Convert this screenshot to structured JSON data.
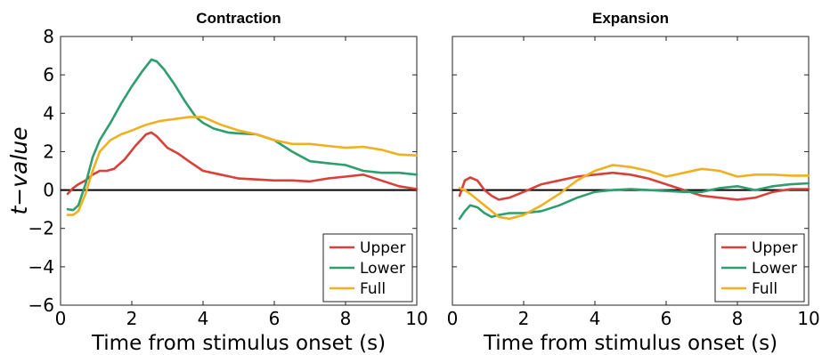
{
  "chart_data": [
    {
      "type": "line",
      "title": "Contraction",
      "xlabel": "Time from stimulus onset (s)",
      "ylabel": "t−value",
      "xlim": [
        0,
        10
      ],
      "ylim": [
        -6,
        8
      ],
      "xticks": [
        "0",
        "2",
        "4",
        "6",
        "8",
        "10"
      ],
      "yticks": [
        "−6",
        "−4",
        "−2",
        "0",
        "2",
        "4",
        "6",
        "8"
      ],
      "legend_position": "bottom-right",
      "series": [
        {
          "name": "Upper",
          "color": "#d9403a",
          "x": [
            0.2,
            0.35,
            0.5,
            0.7,
            0.9,
            1.1,
            1.3,
            1.5,
            1.8,
            2.1,
            2.4,
            2.55,
            2.7,
            3.0,
            3.3,
            3.6,
            4.0,
            4.5,
            5.0,
            5.5,
            6.0,
            6.5,
            7.0,
            7.5,
            8.0,
            8.5,
            9.0,
            9.5,
            10.0
          ],
          "values": [
            -0.2,
            0.1,
            0.3,
            0.5,
            0.8,
            1.0,
            1.0,
            1.1,
            1.6,
            2.3,
            2.9,
            3.0,
            2.8,
            2.2,
            1.9,
            1.5,
            1.0,
            0.8,
            0.6,
            0.55,
            0.5,
            0.5,
            0.45,
            0.6,
            0.7,
            0.8,
            0.5,
            0.2,
            0.05
          ]
        },
        {
          "name": "Lower",
          "color": "#2e9e6e",
          "x": [
            0.2,
            0.35,
            0.5,
            0.7,
            0.9,
            1.1,
            1.4,
            1.7,
            2.0,
            2.3,
            2.55,
            2.7,
            2.9,
            3.2,
            3.5,
            3.8,
            4.0,
            4.3,
            4.7,
            5.0,
            5.5,
            6.0,
            6.5,
            7.0,
            7.5,
            8.0,
            8.5,
            9.0,
            9.5,
            10.0
          ],
          "values": [
            -1.0,
            -1.05,
            -0.8,
            0.3,
            1.7,
            2.6,
            3.5,
            4.5,
            5.4,
            6.2,
            6.8,
            6.7,
            6.3,
            5.5,
            4.6,
            3.8,
            3.5,
            3.2,
            3.0,
            2.95,
            2.9,
            2.6,
            2.0,
            1.5,
            1.4,
            1.3,
            1.0,
            0.9,
            0.9,
            0.8
          ]
        },
        {
          "name": "Full",
          "color": "#f0b020",
          "x": [
            0.2,
            0.35,
            0.5,
            0.7,
            0.9,
            1.1,
            1.4,
            1.7,
            2.0,
            2.4,
            2.8,
            3.2,
            3.6,
            4.0,
            4.5,
            5.0,
            5.5,
            6.0,
            6.5,
            7.0,
            7.5,
            8.0,
            8.5,
            9.0,
            9.5,
            10.0
          ],
          "values": [
            -1.3,
            -1.3,
            -1.1,
            -0.2,
            1.0,
            2.0,
            2.6,
            2.9,
            3.1,
            3.4,
            3.6,
            3.7,
            3.8,
            3.8,
            3.4,
            3.1,
            2.9,
            2.6,
            2.4,
            2.4,
            2.3,
            2.2,
            2.25,
            2.1,
            1.85,
            1.8
          ]
        }
      ]
    },
    {
      "type": "line",
      "title": "Expansion",
      "xlabel": "Time from stimulus onset (s)",
      "xlim": [
        0,
        10
      ],
      "ylim": [
        -6,
        8
      ],
      "xticks": [
        "0",
        "2",
        "4",
        "6",
        "8",
        "10"
      ],
      "legend_position": "bottom-right",
      "series": [
        {
          "name": "Upper",
          "color": "#d9403a",
          "x": [
            0.2,
            0.35,
            0.5,
            0.7,
            0.9,
            1.1,
            1.3,
            1.6,
            2.0,
            2.5,
            3.0,
            3.5,
            4.0,
            4.5,
            5.0,
            5.5,
            6.0,
            6.5,
            7.0,
            7.5,
            8.0,
            8.5,
            9.0,
            9.5,
            10.0
          ],
          "values": [
            -0.3,
            0.5,
            0.65,
            0.5,
            0.0,
            -0.3,
            -0.5,
            -0.4,
            -0.1,
            0.3,
            0.5,
            0.7,
            0.8,
            0.9,
            0.8,
            0.6,
            0.3,
            0.0,
            -0.3,
            -0.4,
            -0.5,
            -0.4,
            -0.1,
            0.05,
            0.05
          ]
        },
        {
          "name": "Lower",
          "color": "#2e9e6e",
          "x": [
            0.2,
            0.35,
            0.5,
            0.7,
            0.9,
            1.1,
            1.3,
            1.6,
            2.0,
            2.5,
            3.0,
            3.5,
            4.0,
            4.5,
            5.0,
            5.5,
            6.0,
            6.5,
            7.0,
            7.5,
            8.0,
            8.5,
            9.0,
            9.5,
            10.0
          ],
          "values": [
            -1.5,
            -1.1,
            -0.8,
            -0.9,
            -1.2,
            -1.4,
            -1.3,
            -1.2,
            -1.2,
            -1.1,
            -0.8,
            -0.4,
            -0.1,
            0.0,
            0.05,
            0.0,
            -0.05,
            -0.1,
            -0.1,
            0.1,
            0.2,
            0.0,
            0.2,
            0.3,
            0.35
          ]
        },
        {
          "name": "Full",
          "color": "#f0b020",
          "x": [
            0.2,
            0.35,
            0.5,
            0.7,
            0.9,
            1.1,
            1.3,
            1.6,
            2.0,
            2.5,
            3.0,
            3.5,
            4.0,
            4.5,
            5.0,
            5.5,
            6.0,
            6.5,
            7.0,
            7.5,
            8.0,
            8.5,
            9.0,
            9.5,
            10.0
          ],
          "values": [
            0.1,
            0.0,
            -0.2,
            -0.5,
            -0.8,
            -1.1,
            -1.4,
            -1.5,
            -1.3,
            -0.8,
            -0.2,
            0.5,
            1.0,
            1.3,
            1.2,
            1.0,
            0.7,
            0.9,
            1.1,
            1.0,
            0.7,
            0.8,
            0.8,
            0.75,
            0.75
          ]
        }
      ]
    }
  ]
}
